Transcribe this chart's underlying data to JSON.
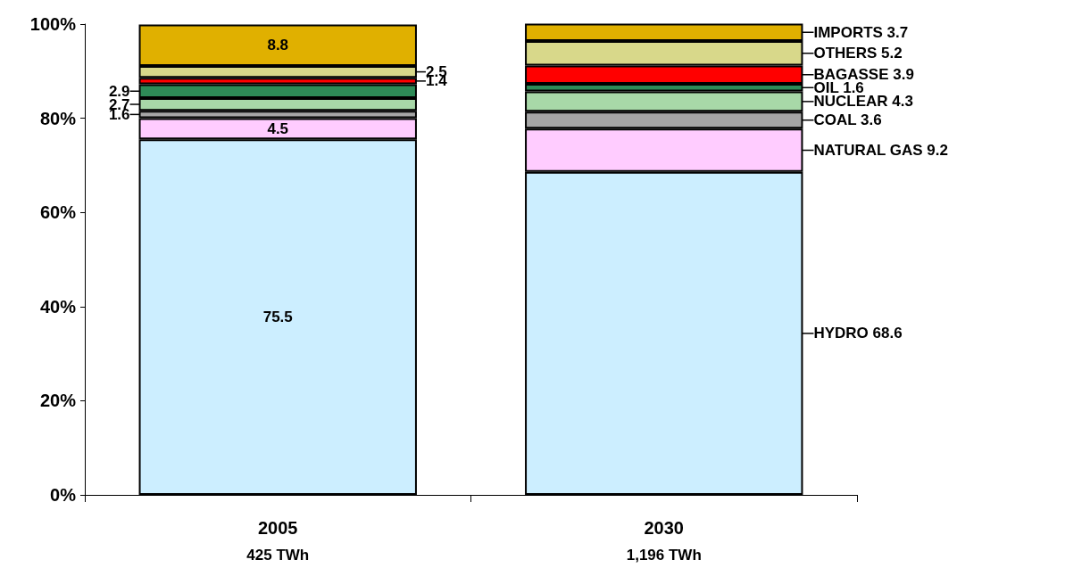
{
  "chart_data": {
    "type": "bar",
    "stacked": true,
    "categories": [
      "2005\n425 TWh",
      "2030\n1,196 TWh"
    ],
    "series": [
      {
        "color": "#cceeff",
        "values": [
          75.5,
          68.6
        ],
        "value_labels": [
          "75.5",
          "HYDRO 68.6"
        ]
      },
      {
        "color": "#ffccff",
        "values": [
          4.5,
          9.2
        ],
        "value_labels": [
          "4.5",
          "NATURAL GAS 9.2"
        ]
      },
      {
        "color": "#a6a6a6",
        "values": [
          1.6,
          3.6
        ],
        "value_labels": [
          "1.6",
          "COAL 3.6"
        ]
      },
      {
        "color": "#a8d8a8",
        "values": [
          2.7,
          4.3
        ],
        "value_labels": [
          "2.7",
          "NUCLEAR 4.3"
        ]
      },
      {
        "color": "#2e8b57",
        "values": [
          2.9,
          1.6
        ],
        "value_labels": [
          "2.9",
          "OIL 1.6"
        ]
      },
      {
        "color": "#ff0000",
        "values": [
          1.4,
          3.9
        ],
        "value_labels": [
          "1.4",
          "BAGASSE 3.9"
        ]
      },
      {
        "color": "#d8d88a",
        "values": [
          2.5,
          5.2
        ],
        "value_labels": [
          "2.5",
          "OTHERS 5.2"
        ]
      },
      {
        "color": "#e0b000",
        "values": [
          8.8,
          3.7
        ],
        "value_labels": [
          "8.8",
          "IMPORTS 3.7"
        ]
      }
    ],
    "ylim": [
      0,
      100
    ],
    "yticks": [
      {
        "value": 0,
        "label": "0%"
      },
      {
        "value": 20,
        "label": "20%"
      },
      {
        "value": 40,
        "label": "40%"
      },
      {
        "value": 60,
        "label": "60%"
      },
      {
        "value": 80,
        "label": "80%"
      },
      {
        "value": 100,
        "label": "100%"
      }
    ],
    "grid": false
  }
}
